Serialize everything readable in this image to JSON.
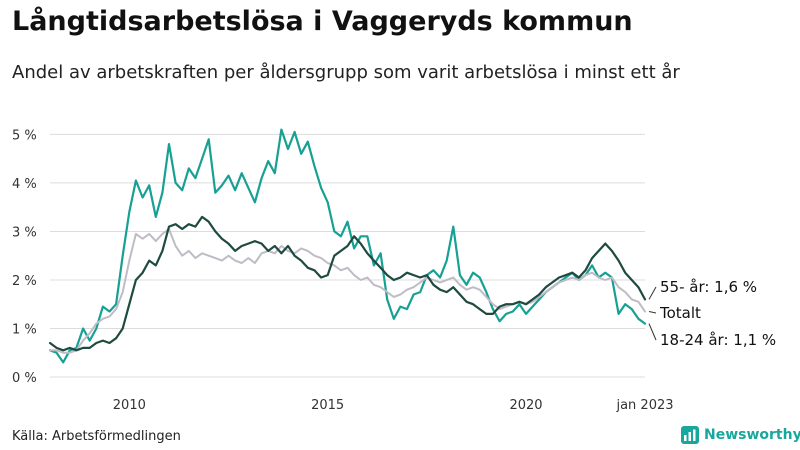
{
  "header": {
    "title": "Långtidsarbetslösa i Vaggeryds kommun",
    "subtitle": "Andel av arbetskraften per åldersgrupp som varit arbetslösa i minst ett år"
  },
  "footer": {
    "source": "Källa: Arbetsförmedlingen",
    "brand": "Newsworthy"
  },
  "colors": {
    "youth": "#17a093",
    "senior": "#1e4a40",
    "total": "#bfbcc6",
    "grid": "#dcdcdc",
    "brand": "#17a79c"
  },
  "chart_data": {
    "type": "line",
    "title": "Långtidsarbetslösa i Vaggeryds kommun",
    "subtitle": "Andel av arbetskraften per åldersgrupp som varit arbetslösa i minst ett år",
    "xlabel": "",
    "ylabel": "",
    "xlim": [
      "2008-01",
      "2023-01"
    ],
    "ylim": [
      0,
      5.4
    ],
    "y_ticks": [
      0,
      1,
      2,
      3,
      4,
      5
    ],
    "y_tick_labels": [
      "0 %",
      "1 %",
      "2 %",
      "3 %",
      "4 %",
      "5 %"
    ],
    "x_ticks": [
      "2010-01",
      "2015-01",
      "2020-01",
      "2023-01"
    ],
    "x_tick_labels": [
      "2010",
      "2015",
      "2020",
      "jan 2023"
    ],
    "grid": "horizontal",
    "legend": "end labels at right",
    "series": [
      {
        "name": "18-24 år",
        "end_label": "18-24 år: 1,1 %",
        "color": "#17a093",
        "points": [
          [
            "2008-01",
            0.55
          ],
          [
            "2008-03",
            0.5
          ],
          [
            "2008-05",
            0.3
          ],
          [
            "2008-07",
            0.55
          ],
          [
            "2008-09",
            0.6
          ],
          [
            "2008-11",
            1.0
          ],
          [
            "2009-01",
            0.75
          ],
          [
            "2009-03",
            1.0
          ],
          [
            "2009-05",
            1.45
          ],
          [
            "2009-07",
            1.35
          ],
          [
            "2009-09",
            1.5
          ],
          [
            "2009-11",
            2.5
          ],
          [
            "2010-01",
            3.4
          ],
          [
            "2010-03",
            4.05
          ],
          [
            "2010-05",
            3.7
          ],
          [
            "2010-07",
            3.95
          ],
          [
            "2010-09",
            3.3
          ],
          [
            "2010-11",
            3.8
          ],
          [
            "2011-01",
            4.8
          ],
          [
            "2011-03",
            4.0
          ],
          [
            "2011-05",
            3.85
          ],
          [
            "2011-07",
            4.3
          ],
          [
            "2011-09",
            4.1
          ],
          [
            "2011-11",
            4.5
          ],
          [
            "2012-01",
            4.9
          ],
          [
            "2012-03",
            3.8
          ],
          [
            "2012-05",
            3.95
          ],
          [
            "2012-07",
            4.15
          ],
          [
            "2012-09",
            3.85
          ],
          [
            "2012-11",
            4.2
          ],
          [
            "2013-01",
            3.9
          ],
          [
            "2013-03",
            3.6
          ],
          [
            "2013-05",
            4.1
          ],
          [
            "2013-07",
            4.45
          ],
          [
            "2013-09",
            4.2
          ],
          [
            "2013-11",
            5.1
          ],
          [
            "2014-01",
            4.7
          ],
          [
            "2014-03",
            5.05
          ],
          [
            "2014-05",
            4.6
          ],
          [
            "2014-07",
            4.85
          ],
          [
            "2014-09",
            4.35
          ],
          [
            "2014-11",
            3.9
          ],
          [
            "2015-01",
            3.6
          ],
          [
            "2015-03",
            3.0
          ],
          [
            "2015-05",
            2.9
          ],
          [
            "2015-07",
            3.2
          ],
          [
            "2015-09",
            2.65
          ],
          [
            "2015-11",
            2.9
          ],
          [
            "2016-01",
            2.9
          ],
          [
            "2016-03",
            2.3
          ],
          [
            "2016-05",
            2.55
          ],
          [
            "2016-07",
            1.6
          ],
          [
            "2016-09",
            1.2
          ],
          [
            "2016-11",
            1.45
          ],
          [
            "2017-01",
            1.4
          ],
          [
            "2017-03",
            1.7
          ],
          [
            "2017-05",
            1.75
          ],
          [
            "2017-07",
            2.1
          ],
          [
            "2017-09",
            2.2
          ],
          [
            "2017-11",
            2.05
          ],
          [
            "2018-01",
            2.4
          ],
          [
            "2018-03",
            3.1
          ],
          [
            "2018-05",
            2.1
          ],
          [
            "2018-07",
            1.9
          ],
          [
            "2018-09",
            2.15
          ],
          [
            "2018-11",
            2.05
          ],
          [
            "2019-01",
            1.75
          ],
          [
            "2019-03",
            1.4
          ],
          [
            "2019-05",
            1.15
          ],
          [
            "2019-07",
            1.3
          ],
          [
            "2019-09",
            1.35
          ],
          [
            "2019-11",
            1.5
          ],
          [
            "2020-01",
            1.3
          ],
          [
            "2020-03",
            1.45
          ],
          [
            "2020-05",
            1.6
          ],
          [
            "2020-07",
            1.75
          ],
          [
            "2020-09",
            1.85
          ],
          [
            "2020-11",
            1.95
          ],
          [
            "2021-01",
            2.05
          ],
          [
            "2021-03",
            2.15
          ],
          [
            "2021-05",
            2.0
          ],
          [
            "2021-07",
            2.1
          ],
          [
            "2021-09",
            2.3
          ],
          [
            "2021-11",
            2.05
          ],
          [
            "2022-01",
            2.15
          ],
          [
            "2022-03",
            2.05
          ],
          [
            "2022-05",
            1.3
          ],
          [
            "2022-07",
            1.5
          ],
          [
            "2022-09",
            1.4
          ],
          [
            "2022-11",
            1.2
          ],
          [
            "2023-01",
            1.1
          ]
        ]
      },
      {
        "name": "Totalt",
        "end_label": "Totalt",
        "color": "#bfbcc6",
        "points": [
          [
            "2008-01",
            0.55
          ],
          [
            "2008-03",
            0.55
          ],
          [
            "2008-05",
            0.5
          ],
          [
            "2008-07",
            0.5
          ],
          [
            "2008-09",
            0.55
          ],
          [
            "2008-11",
            0.75
          ],
          [
            "2009-01",
            0.9
          ],
          [
            "2009-03",
            1.1
          ],
          [
            "2009-05",
            1.2
          ],
          [
            "2009-07",
            1.25
          ],
          [
            "2009-09",
            1.4
          ],
          [
            "2009-11",
            1.75
          ],
          [
            "2010-01",
            2.4
          ],
          [
            "2010-03",
            2.95
          ],
          [
            "2010-05",
            2.85
          ],
          [
            "2010-07",
            2.95
          ],
          [
            "2010-09",
            2.8
          ],
          [
            "2010-11",
            2.95
          ],
          [
            "2011-01",
            3.05
          ],
          [
            "2011-03",
            2.7
          ],
          [
            "2011-05",
            2.5
          ],
          [
            "2011-07",
            2.6
          ],
          [
            "2011-09",
            2.45
          ],
          [
            "2011-11",
            2.55
          ],
          [
            "2012-01",
            2.5
          ],
          [
            "2012-03",
            2.45
          ],
          [
            "2012-05",
            2.4
          ],
          [
            "2012-07",
            2.5
          ],
          [
            "2012-09",
            2.4
          ],
          [
            "2012-11",
            2.35
          ],
          [
            "2013-01",
            2.45
          ],
          [
            "2013-03",
            2.35
          ],
          [
            "2013-05",
            2.55
          ],
          [
            "2013-07",
            2.6
          ],
          [
            "2013-09",
            2.55
          ],
          [
            "2013-11",
            2.7
          ],
          [
            "2014-01",
            2.6
          ],
          [
            "2014-03",
            2.55
          ],
          [
            "2014-05",
            2.65
          ],
          [
            "2014-07",
            2.6
          ],
          [
            "2014-09",
            2.5
          ],
          [
            "2014-11",
            2.45
          ],
          [
            "2015-01",
            2.35
          ],
          [
            "2015-03",
            2.3
          ],
          [
            "2015-05",
            2.2
          ],
          [
            "2015-07",
            2.25
          ],
          [
            "2015-09",
            2.1
          ],
          [
            "2015-11",
            2.0
          ],
          [
            "2016-01",
            2.05
          ],
          [
            "2016-03",
            1.9
          ],
          [
            "2016-05",
            1.85
          ],
          [
            "2016-07",
            1.75
          ],
          [
            "2016-09",
            1.65
          ],
          [
            "2016-11",
            1.7
          ],
          [
            "2017-01",
            1.8
          ],
          [
            "2017-03",
            1.85
          ],
          [
            "2017-05",
            1.95
          ],
          [
            "2017-07",
            2.05
          ],
          [
            "2017-09",
            2.0
          ],
          [
            "2017-11",
            1.95
          ],
          [
            "2018-01",
            2.0
          ],
          [
            "2018-03",
            2.05
          ],
          [
            "2018-05",
            1.9
          ],
          [
            "2018-07",
            1.8
          ],
          [
            "2018-09",
            1.85
          ],
          [
            "2018-11",
            1.8
          ],
          [
            "2019-01",
            1.65
          ],
          [
            "2019-03",
            1.5
          ],
          [
            "2019-05",
            1.4
          ],
          [
            "2019-07",
            1.45
          ],
          [
            "2019-09",
            1.5
          ],
          [
            "2019-11",
            1.55
          ],
          [
            "2020-01",
            1.5
          ],
          [
            "2020-03",
            1.55
          ],
          [
            "2020-05",
            1.65
          ],
          [
            "2020-07",
            1.75
          ],
          [
            "2020-09",
            1.85
          ],
          [
            "2020-11",
            1.95
          ],
          [
            "2021-01",
            2.0
          ],
          [
            "2021-03",
            2.05
          ],
          [
            "2021-05",
            2.0
          ],
          [
            "2021-07",
            2.1
          ],
          [
            "2021-09",
            2.15
          ],
          [
            "2021-11",
            2.05
          ],
          [
            "2022-01",
            2.0
          ],
          [
            "2022-03",
            2.05
          ],
          [
            "2022-05",
            1.85
          ],
          [
            "2022-07",
            1.75
          ],
          [
            "2022-09",
            1.6
          ],
          [
            "2022-11",
            1.55
          ],
          [
            "2023-01",
            1.35
          ]
        ]
      },
      {
        "name": "55- år",
        "end_label": "55- år: 1,6 %",
        "color": "#1e4a40",
        "points": [
          [
            "2008-01",
            0.7
          ],
          [
            "2008-03",
            0.6
          ],
          [
            "2008-05",
            0.55
          ],
          [
            "2008-07",
            0.6
          ],
          [
            "2008-09",
            0.55
          ],
          [
            "2008-11",
            0.6
          ],
          [
            "2009-01",
            0.6
          ],
          [
            "2009-03",
            0.7
          ],
          [
            "2009-05",
            0.75
          ],
          [
            "2009-07",
            0.7
          ],
          [
            "2009-09",
            0.8
          ],
          [
            "2009-11",
            1.0
          ],
          [
            "2010-01",
            1.5
          ],
          [
            "2010-03",
            2.0
          ],
          [
            "2010-05",
            2.15
          ],
          [
            "2010-07",
            2.4
          ],
          [
            "2010-09",
            2.3
          ],
          [
            "2010-11",
            2.6
          ],
          [
            "2011-01",
            3.1
          ],
          [
            "2011-03",
            3.15
          ],
          [
            "2011-05",
            3.05
          ],
          [
            "2011-07",
            3.15
          ],
          [
            "2011-09",
            3.1
          ],
          [
            "2011-11",
            3.3
          ],
          [
            "2012-01",
            3.2
          ],
          [
            "2012-03",
            3.0
          ],
          [
            "2012-05",
            2.85
          ],
          [
            "2012-07",
            2.75
          ],
          [
            "2012-09",
            2.6
          ],
          [
            "2012-11",
            2.7
          ],
          [
            "2013-01",
            2.75
          ],
          [
            "2013-03",
            2.8
          ],
          [
            "2013-05",
            2.75
          ],
          [
            "2013-07",
            2.6
          ],
          [
            "2013-09",
            2.7
          ],
          [
            "2013-11",
            2.55
          ],
          [
            "2014-01",
            2.7
          ],
          [
            "2014-03",
            2.5
          ],
          [
            "2014-05",
            2.4
          ],
          [
            "2014-07",
            2.25
          ],
          [
            "2014-09",
            2.2
          ],
          [
            "2014-11",
            2.05
          ],
          [
            "2015-01",
            2.1
          ],
          [
            "2015-03",
            2.5
          ],
          [
            "2015-05",
            2.6
          ],
          [
            "2015-07",
            2.7
          ],
          [
            "2015-09",
            2.9
          ],
          [
            "2015-11",
            2.75
          ],
          [
            "2016-01",
            2.55
          ],
          [
            "2016-03",
            2.4
          ],
          [
            "2016-05",
            2.25
          ],
          [
            "2016-07",
            2.1
          ],
          [
            "2016-09",
            2.0
          ],
          [
            "2016-11",
            2.05
          ],
          [
            "2017-01",
            2.15
          ],
          [
            "2017-03",
            2.1
          ],
          [
            "2017-05",
            2.05
          ],
          [
            "2017-07",
            2.1
          ],
          [
            "2017-09",
            1.9
          ],
          [
            "2017-11",
            1.8
          ],
          [
            "2018-01",
            1.75
          ],
          [
            "2018-03",
            1.85
          ],
          [
            "2018-05",
            1.7
          ],
          [
            "2018-07",
            1.55
          ],
          [
            "2018-09",
            1.5
          ],
          [
            "2018-11",
            1.4
          ],
          [
            "2019-01",
            1.3
          ],
          [
            "2019-03",
            1.3
          ],
          [
            "2019-05",
            1.45
          ],
          [
            "2019-07",
            1.5
          ],
          [
            "2019-09",
            1.5
          ],
          [
            "2019-11",
            1.55
          ],
          [
            "2020-01",
            1.5
          ],
          [
            "2020-03",
            1.6
          ],
          [
            "2020-05",
            1.7
          ],
          [
            "2020-07",
            1.85
          ],
          [
            "2020-09",
            1.95
          ],
          [
            "2020-11",
            2.05
          ],
          [
            "2021-01",
            2.1
          ],
          [
            "2021-03",
            2.15
          ],
          [
            "2021-05",
            2.05
          ],
          [
            "2021-07",
            2.2
          ],
          [
            "2021-09",
            2.45
          ],
          [
            "2021-11",
            2.6
          ],
          [
            "2022-01",
            2.75
          ],
          [
            "2022-03",
            2.6
          ],
          [
            "2022-05",
            2.4
          ],
          [
            "2022-07",
            2.15
          ],
          [
            "2022-09",
            2.0
          ],
          [
            "2022-11",
            1.85
          ],
          [
            "2023-01",
            1.6
          ]
        ]
      }
    ]
  }
}
